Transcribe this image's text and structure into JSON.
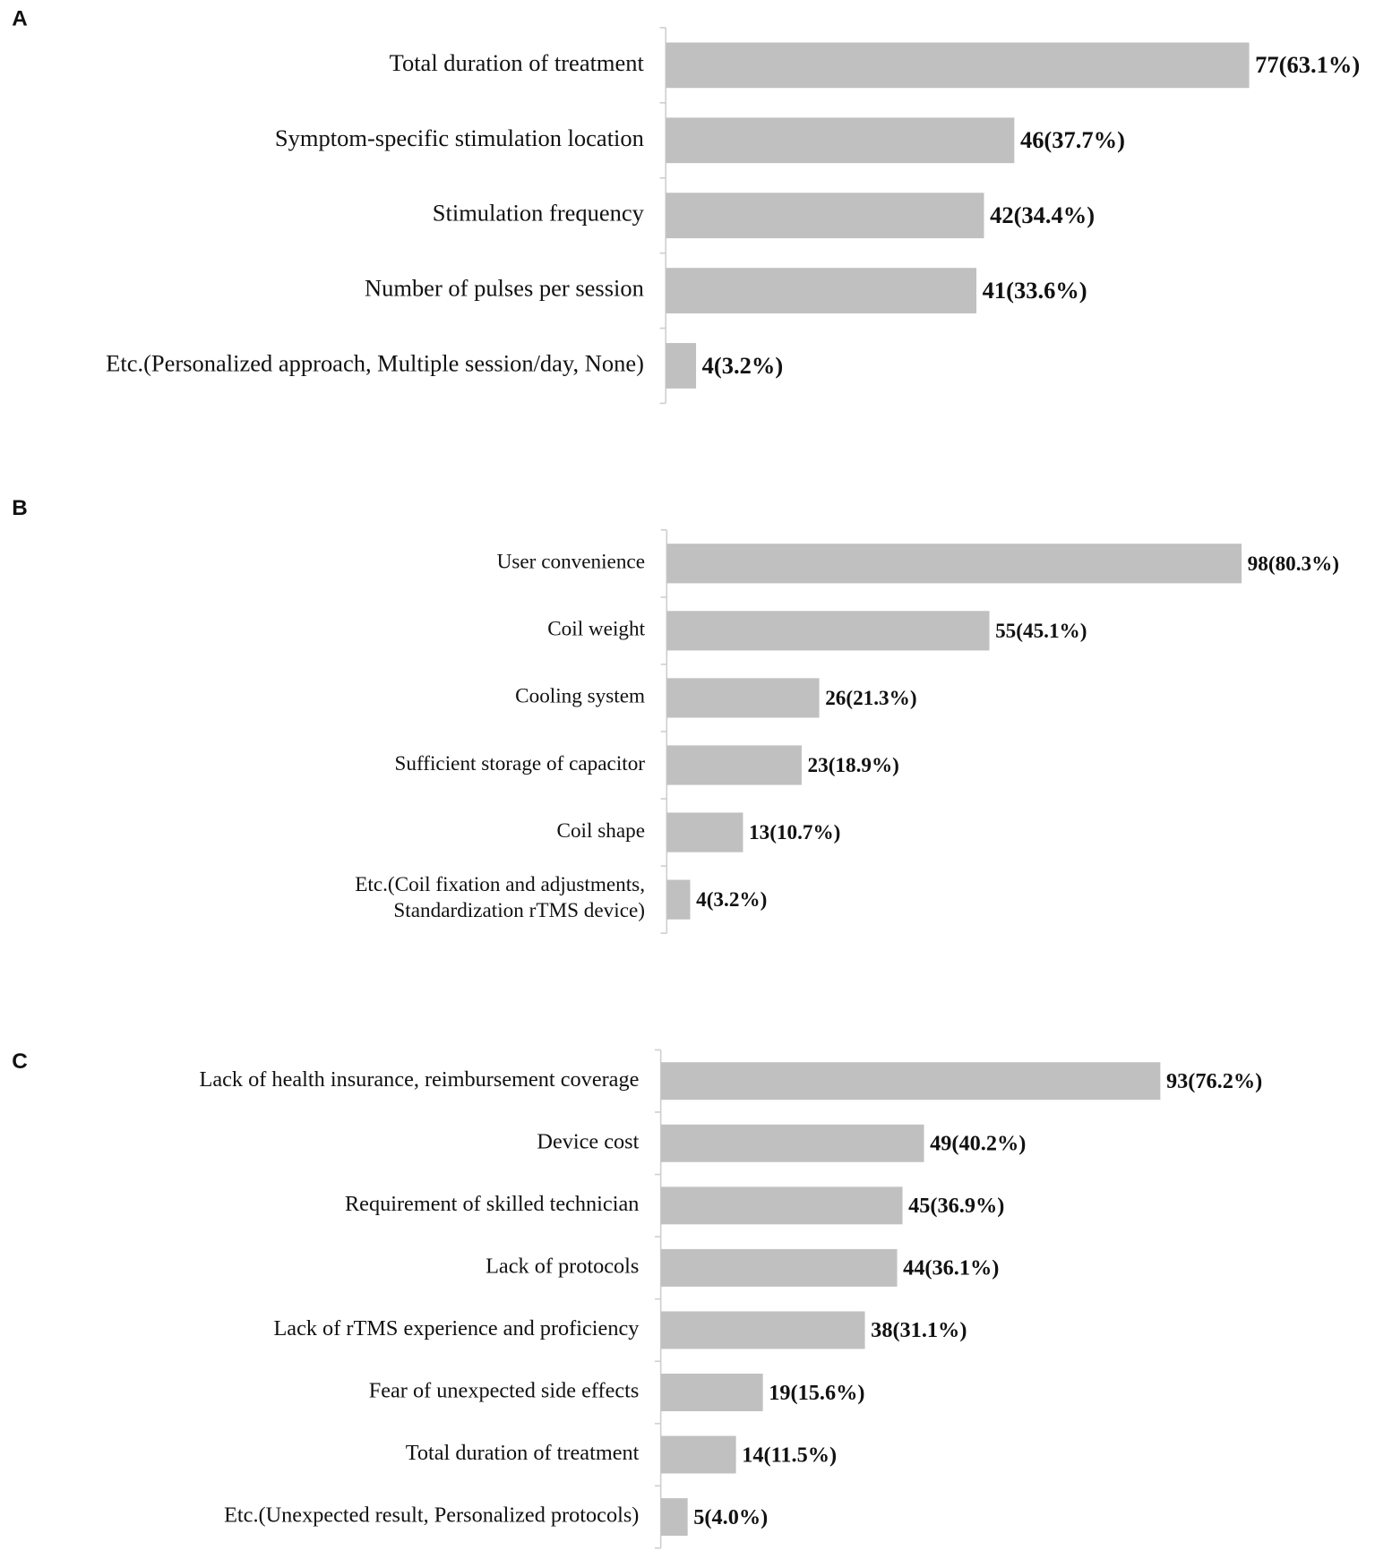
{
  "chart_data": [
    {
      "type": "bar",
      "orientation": "horizontal",
      "title": "A",
      "categories": [
        "Total duration of treatment",
        "Symptom-specific stimulation location",
        "Stimulation frequency",
        "Number of pulses per session",
        "Etc.(Personalized approach, Multiple session/day, None)"
      ],
      "values": [
        77,
        46,
        42,
        41,
        4
      ],
      "value_labels": [
        "77(63.1%)",
        "46(37.7%)",
        "42(34.4%)",
        "41(33.6%)",
        "4(3.2%)"
      ],
      "color": "#c0c0c0",
      "xlim": [
        0,
        100
      ]
    },
    {
      "type": "bar",
      "orientation": "horizontal",
      "title": "B",
      "categories": [
        "User convenience",
        "Coil weight",
        "Cooling system",
        "Sufficient storage of capacitor",
        "Coil shape",
        "Etc.(Coil fixation and adjustments,\nStandardization rTMS device)"
      ],
      "values": [
        98,
        55,
        26,
        23,
        13,
        4
      ],
      "value_labels": [
        "98(80.3%)",
        "55(45.1%)",
        "26(21.3%)",
        "23(18.9%)",
        "13(10.7%)",
        "4(3.2%)"
      ],
      "color": "#c0c0c0",
      "xlim": [
        0,
        100
      ]
    },
    {
      "type": "bar",
      "orientation": "horizontal",
      "title": "C",
      "categories": [
        "Lack of health insurance, reimbursement coverage",
        "Device cost",
        "Requirement of skilled technician",
        "Lack of protocols",
        "Lack of rTMS experience and proficiency",
        "Fear of unexpected side effects",
        "Total duration of treatment",
        "Etc.(Unexpected result, Personalized protocols)"
      ],
      "values": [
        93,
        49,
        45,
        44,
        38,
        19,
        14,
        5
      ],
      "value_labels": [
        "93(76.2%)",
        "49(40.2%)",
        "45(36.9%)",
        "44(36.1%)",
        "38(31.1%)",
        "19(15.6%)",
        "14(11.5%)",
        "5(4.0%)"
      ],
      "color": "#c0c0c0",
      "xlim": [
        0,
        100
      ]
    }
  ]
}
